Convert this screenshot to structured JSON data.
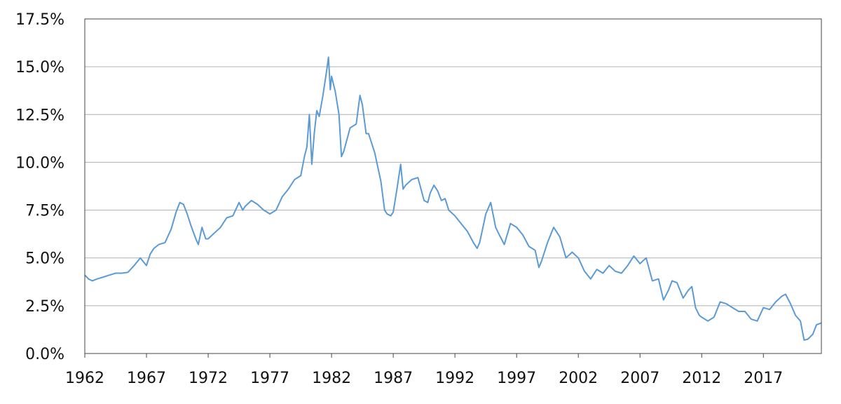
{
  "chart_data": {
    "type": "line",
    "title": "",
    "xlabel": "",
    "ylabel": "",
    "xlim": [
      1962,
      2021.7
    ],
    "ylim": [
      0,
      17.5
    ],
    "grid": "horizontal",
    "x_ticks": [
      "1962",
      "1967",
      "1972",
      "1977",
      "1982",
      "1987",
      "1992",
      "1997",
      "2002",
      "2007",
      "2012",
      "2017"
    ],
    "y_ticks": [
      "0.0%",
      "2.5%",
      "5.0%",
      "7.5%",
      "10.0%",
      "12.5%",
      "15.0%",
      "17.5%"
    ],
    "series": [
      {
        "color": "#5b9bd5",
        "x": [
          1962.0,
          1962.3,
          1962.6,
          1963.0,
          1963.5,
          1964.0,
          1964.5,
          1965.0,
          1965.5,
          1966.0,
          1966.5,
          1967.0,
          1967.3,
          1967.6,
          1968.0,
          1968.5,
          1969.0,
          1969.4,
          1969.7,
          1970.0,
          1970.3,
          1970.6,
          1971.0,
          1971.2,
          1971.5,
          1971.8,
          1972.0,
          1972.5,
          1973.0,
          1973.5,
          1974.0,
          1974.5,
          1974.8,
          1975.0,
          1975.5,
          1976.0,
          1976.5,
          1977.0,
          1977.5,
          1978.0,
          1978.5,
          1979.0,
          1979.5,
          1979.8,
          1980.0,
          1980.2,
          1980.4,
          1980.6,
          1980.8,
          1981.0,
          1981.3,
          1981.6,
          1981.75,
          1981.9,
          1982.0,
          1982.3,
          1982.6,
          1982.8,
          1983.0,
          1983.5,
          1984.0,
          1984.3,
          1984.5,
          1984.8,
          1985.0,
          1985.5,
          1986.0,
          1986.3,
          1986.5,
          1986.8,
          1987.0,
          1987.3,
          1987.6,
          1987.8,
          1988.0,
          1988.5,
          1989.0,
          1989.5,
          1989.8,
          1990.0,
          1990.3,
          1990.6,
          1990.9,
          1991.2,
          1991.5,
          1992.0,
          1992.5,
          1993.0,
          1993.5,
          1993.8,
          1994.0,
          1994.5,
          1994.9,
          1995.3,
          1995.6,
          1996.0,
          1996.5,
          1997.0,
          1997.5,
          1998.0,
          1998.5,
          1998.8,
          1999.0,
          1999.5,
          2000.0,
          2000.5,
          2001.0,
          2001.5,
          2002.0,
          2002.5,
          2003.0,
          2003.5,
          2004.0,
          2004.5,
          2005.0,
          2005.5,
          2006.0,
          2006.5,
          2007.0,
          2007.5,
          2008.0,
          2008.5,
          2008.9,
          2009.3,
          2009.6,
          2010.0,
          2010.5,
          2010.9,
          2011.2,
          2011.5,
          2011.8,
          2012.0,
          2012.5,
          2013.0,
          2013.5,
          2014.0,
          2014.5,
          2015.0,
          2015.5,
          2016.0,
          2016.5,
          2017.0,
          2017.5,
          2018.0,
          2018.5,
          2018.8,
          2019.2,
          2019.6,
          2020.0,
          2020.3,
          2020.6,
          2021.0,
          2021.3,
          2021.7
        ],
        "y": [
          4.1,
          3.9,
          3.8,
          3.9,
          4.0,
          4.1,
          4.2,
          4.2,
          4.25,
          4.6,
          5.0,
          4.6,
          5.2,
          5.5,
          5.7,
          5.8,
          6.5,
          7.4,
          7.9,
          7.8,
          7.3,
          6.7,
          6.0,
          5.7,
          6.6,
          6.0,
          6.0,
          6.3,
          6.6,
          7.1,
          7.2,
          7.9,
          7.5,
          7.7,
          8.0,
          7.8,
          7.5,
          7.3,
          7.5,
          8.2,
          8.6,
          9.1,
          9.3,
          10.3,
          10.8,
          12.5,
          9.9,
          11.5,
          12.7,
          12.4,
          13.5,
          14.8,
          15.5,
          13.8,
          14.5,
          13.7,
          12.5,
          10.3,
          10.6,
          11.8,
          12.0,
          13.5,
          13.0,
          11.5,
          11.5,
          10.5,
          9.0,
          7.5,
          7.3,
          7.2,
          7.4,
          8.6,
          9.9,
          8.6,
          8.8,
          9.1,
          9.2,
          8.0,
          7.9,
          8.4,
          8.8,
          8.5,
          8.0,
          8.1,
          7.5,
          7.2,
          6.8,
          6.4,
          5.8,
          5.5,
          5.8,
          7.3,
          7.9,
          6.6,
          6.2,
          5.7,
          6.8,
          6.6,
          6.2,
          5.6,
          5.4,
          4.5,
          4.8,
          5.8,
          6.6,
          6.1,
          5.0,
          5.3,
          5.0,
          4.3,
          3.9,
          4.4,
          4.2,
          4.6,
          4.3,
          4.2,
          4.6,
          5.1,
          4.7,
          5.0,
          3.8,
          3.9,
          2.8,
          3.3,
          3.8,
          3.7,
          2.9,
          3.3,
          3.5,
          2.4,
          2.0,
          1.9,
          1.7,
          1.9,
          2.7,
          2.6,
          2.4,
          2.2,
          2.2,
          1.8,
          1.7,
          2.4,
          2.3,
          2.7,
          3.0,
          3.1,
          2.6,
          2.0,
          1.7,
          0.7,
          0.75,
          1.0,
          1.5,
          1.6
        ]
      }
    ]
  }
}
